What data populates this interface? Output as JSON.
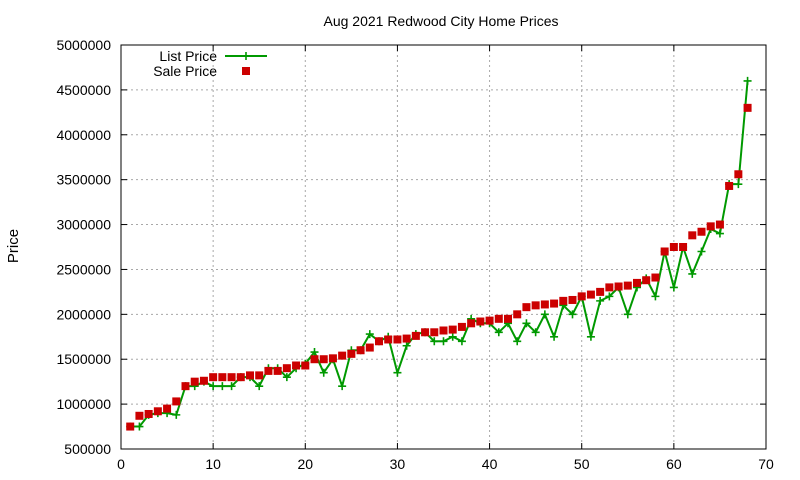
{
  "chart_data": {
    "type": "line",
    "title": "Aug 2021 Redwood City Home Prices",
    "xlabel": "",
    "ylabel": "Price",
    "xlim": [
      0,
      70
    ],
    "ylim": [
      500000,
      5000000
    ],
    "xticks": [
      0,
      10,
      20,
      30,
      40,
      50,
      60,
      70
    ],
    "yticks": [
      500000,
      1000000,
      1500000,
      2000000,
      2500000,
      3000000,
      3500000,
      4000000,
      4500000,
      5000000
    ],
    "grid": true,
    "legend_position": "top-left",
    "series": [
      {
        "name": "List Price",
        "style": "line-plus",
        "color": "#009900",
        "points": [
          [
            1,
            750000
          ],
          [
            2,
            750000
          ],
          [
            3,
            880000
          ],
          [
            4,
            900000
          ],
          [
            5,
            900000
          ],
          [
            6,
            880000
          ],
          [
            7,
            1200000
          ],
          [
            8,
            1200000
          ],
          [
            9,
            1250000
          ],
          [
            10,
            1200000
          ],
          [
            11,
            1200000
          ],
          [
            12,
            1200000
          ],
          [
            13,
            1300000
          ],
          [
            14,
            1300000
          ],
          [
            15,
            1200000
          ],
          [
            16,
            1400000
          ],
          [
            17,
            1400000
          ],
          [
            18,
            1300000
          ],
          [
            19,
            1400000
          ],
          [
            20,
            1450000
          ],
          [
            21,
            1580000
          ],
          [
            22,
            1350000
          ],
          [
            23,
            1500000
          ],
          [
            24,
            1200000
          ],
          [
            25,
            1600000
          ],
          [
            26,
            1600000
          ],
          [
            27,
            1780000
          ],
          [
            28,
            1700000
          ],
          [
            29,
            1750000
          ],
          [
            30,
            1350000
          ],
          [
            31,
            1650000
          ],
          [
            32,
            1780000
          ],
          [
            33,
            1800000
          ],
          [
            34,
            1700000
          ],
          [
            35,
            1700000
          ],
          [
            36,
            1750000
          ],
          [
            37,
            1700000
          ],
          [
            38,
            1950000
          ],
          [
            39,
            1900000
          ],
          [
            40,
            1900000
          ],
          [
            41,
            1800000
          ],
          [
            42,
            1900000
          ],
          [
            43,
            1700000
          ],
          [
            44,
            1900000
          ],
          [
            45,
            1800000
          ],
          [
            46,
            2000000
          ],
          [
            47,
            1750000
          ],
          [
            48,
            2100000
          ],
          [
            49,
            2000000
          ],
          [
            50,
            2200000
          ],
          [
            51,
            1750000
          ],
          [
            52,
            2150000
          ],
          [
            53,
            2200000
          ],
          [
            54,
            2300000
          ],
          [
            55,
            2000000
          ],
          [
            56,
            2300000
          ],
          [
            57,
            2400000
          ],
          [
            58,
            2200000
          ],
          [
            59,
            2700000
          ],
          [
            60,
            2300000
          ],
          [
            61,
            2750000
          ],
          [
            62,
            2450000
          ],
          [
            63,
            2700000
          ],
          [
            64,
            2950000
          ],
          [
            65,
            2900000
          ],
          [
            66,
            3450000
          ],
          [
            67,
            3450000
          ],
          [
            68,
            4600000
          ]
        ]
      },
      {
        "name": "Sale Price",
        "style": "square-markers",
        "color": "#cc0000",
        "points": [
          [
            1,
            750000
          ],
          [
            2,
            870000
          ],
          [
            3,
            890000
          ],
          [
            4,
            920000
          ],
          [
            5,
            950000
          ],
          [
            6,
            1030000
          ],
          [
            7,
            1200000
          ],
          [
            8,
            1250000
          ],
          [
            9,
            1260000
          ],
          [
            10,
            1300000
          ],
          [
            11,
            1300000
          ],
          [
            12,
            1300000
          ],
          [
            13,
            1300000
          ],
          [
            14,
            1320000
          ],
          [
            15,
            1320000
          ],
          [
            16,
            1370000
          ],
          [
            17,
            1370000
          ],
          [
            18,
            1400000
          ],
          [
            19,
            1430000
          ],
          [
            20,
            1430000
          ],
          [
            21,
            1500000
          ],
          [
            22,
            1500000
          ],
          [
            23,
            1510000
          ],
          [
            24,
            1540000
          ],
          [
            25,
            1560000
          ],
          [
            26,
            1600000
          ],
          [
            27,
            1630000
          ],
          [
            28,
            1700000
          ],
          [
            29,
            1720000
          ],
          [
            30,
            1720000
          ],
          [
            31,
            1730000
          ],
          [
            32,
            1760000
          ],
          [
            33,
            1800000
          ],
          [
            34,
            1800000
          ],
          [
            35,
            1820000
          ],
          [
            36,
            1830000
          ],
          [
            37,
            1860000
          ],
          [
            38,
            1900000
          ],
          [
            39,
            1920000
          ],
          [
            40,
            1930000
          ],
          [
            41,
            1950000
          ],
          [
            42,
            1950000
          ],
          [
            43,
            2000000
          ],
          [
            44,
            2080000
          ],
          [
            45,
            2100000
          ],
          [
            46,
            2110000
          ],
          [
            47,
            2120000
          ],
          [
            48,
            2150000
          ],
          [
            49,
            2160000
          ],
          [
            50,
            2200000
          ],
          [
            51,
            2220000
          ],
          [
            52,
            2250000
          ],
          [
            53,
            2300000
          ],
          [
            54,
            2310000
          ],
          [
            55,
            2320000
          ],
          [
            56,
            2350000
          ],
          [
            57,
            2380000
          ],
          [
            58,
            2410000
          ],
          [
            59,
            2700000
          ],
          [
            60,
            2750000
          ],
          [
            61,
            2750000
          ],
          [
            62,
            2880000
          ],
          [
            63,
            2920000
          ],
          [
            64,
            2980000
          ],
          [
            65,
            3000000
          ],
          [
            66,
            3430000
          ],
          [
            67,
            3560000
          ],
          [
            68,
            4300000
          ]
        ]
      }
    ]
  }
}
